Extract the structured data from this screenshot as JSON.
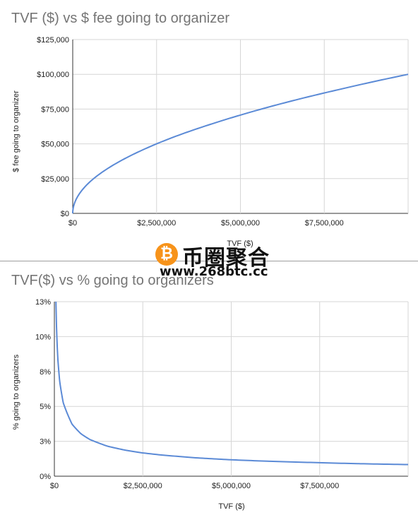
{
  "chart_data": [
    {
      "type": "line",
      "title": "TVF ($) vs $ fee going to organizer",
      "xlabel": "TVF ($)",
      "ylabel": "$ fee going to organizer",
      "xlim": [
        0,
        10000000
      ],
      "ylim": [
        0,
        125000
      ],
      "x_ticks": [
        "$0",
        "$2,500,000",
        "$5,000,000",
        "$7,500,000"
      ],
      "y_ticks": [
        "$0",
        "$25,000",
        "$50,000",
        "$75,000",
        "$100,000",
        "$125,000"
      ],
      "series": [
        {
          "color": "#5b8ad6",
          "x": [
            0,
            100000,
            250000,
            500000,
            1000000,
            1500000,
            2000000,
            2500000,
            3000000,
            4000000,
            5000000,
            6000000,
            7000000,
            8000000,
            9000000,
            10000000
          ],
          "y": [
            0,
            10000,
            15800,
            22400,
            31600,
            38700,
            44700,
            50000,
            54800,
            63200,
            70700,
            77500,
            83700,
            89400,
            94900,
            100000
          ]
        }
      ],
      "grid": true
    },
    {
      "type": "line",
      "title": "TVF($) vs % going to organizers",
      "xlabel": "TVF ($)",
      "ylabel": "% going to organizers",
      "xlim": [
        0,
        10000000
      ],
      "ylim": [
        0,
        0.15
      ],
      "x_ticks": [
        "$0",
        "$2,500,000",
        "$5,000,000",
        "$7,500,000"
      ],
      "y_ticks": [
        "0%",
        "3%",
        "5%",
        "8%",
        "10%",
        "13%"
      ],
      "series": [
        {
          "color": "#5b8ad6",
          "x": [
            44444,
            60000,
            80000,
            100000,
            150000,
            250000,
            500000,
            750000,
            1000000,
            1500000,
            2000000,
            2500000,
            3000000,
            4000000,
            5000000,
            6000000,
            7000000,
            8000000,
            9000000,
            10000000
          ],
          "y": [
            0.15,
            0.129,
            0.112,
            0.1,
            0.0816,
            0.0632,
            0.0447,
            0.0365,
            0.0316,
            0.0258,
            0.0224,
            0.02,
            0.0183,
            0.0158,
            0.0141,
            0.0129,
            0.012,
            0.0112,
            0.0105,
            0.01
          ]
        }
      ],
      "grid": true
    }
  ],
  "watermark": {
    "logo_glyph": "₿",
    "chinese_text": "币圈聚合",
    "url": "www.268btc.cc",
    "logo_color": "#f7931a"
  }
}
